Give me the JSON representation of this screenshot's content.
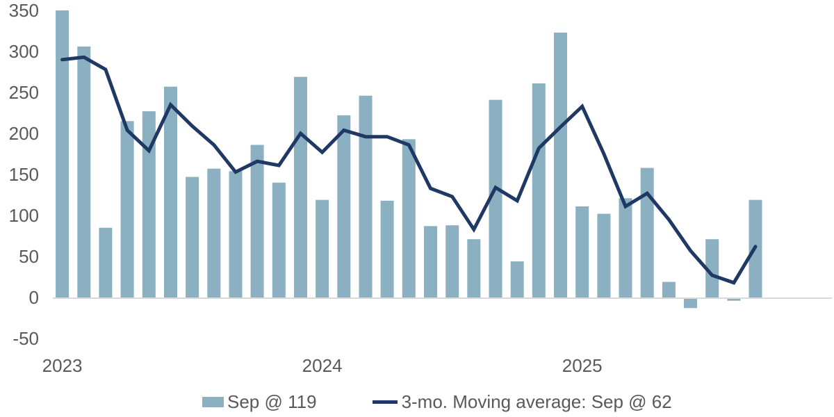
{
  "colors": {
    "bar": "#8AB0C2",
    "line": "#1F3864",
    "axis_line": "#D9D9D9",
    "label_text": "#595959",
    "background": "#FFFFFF"
  },
  "chart_data": {
    "type": "bar",
    "subtype": "bar-with-line-overlay",
    "title": "",
    "xlabel": "",
    "ylabel": "",
    "x": [
      "Jan 2023",
      "Feb 2023",
      "Mar 2023",
      "Apr 2023",
      "May 2023",
      "Jun 2023",
      "Jul 2023",
      "Aug 2023",
      "Sep 2023",
      "Oct 2023",
      "Nov 2023",
      "Dec 2023",
      "Jan 2024",
      "Feb 2024",
      "Mar 2024",
      "Apr 2024",
      "May 2024",
      "Jun 2024",
      "Jul 2024",
      "Aug 2024",
      "Sep 2024",
      "Oct 2024",
      "Nov 2024",
      "Dec 2024",
      "Jan 2025",
      "Feb 2025",
      "Mar 2025",
      "Apr 2025",
      "May 2025",
      "Jun 2025",
      "Jul 2025",
      "Aug 2025",
      "Sep 2025"
    ],
    "series": [
      {
        "name": "Sep @ 119",
        "type": "bar",
        "color": "#8AB0C2",
        "values": [
          350,
          306,
          85,
          215,
          227,
          257,
          147,
          157,
          154,
          186,
          140,
          269,
          119,
          222,
          246,
          118,
          193,
          87,
          88,
          71,
          241,
          44,
          261,
          323,
          111,
          102,
          121,
          158,
          19,
          -13,
          71,
          -4,
          119
        ]
      },
      {
        "name": "3-mo. Moving average: Sep @ 62",
        "type": "line",
        "color": "#1F3864",
        "values": [
          290,
          293,
          278,
          204,
          179,
          235,
          209,
          186,
          153,
          166,
          161,
          200,
          177,
          204,
          196,
          196,
          186,
          133,
          123,
          83,
          134,
          118,
          182,
          208,
          233,
          175,
          111,
          127,
          95,
          57,
          27,
          18,
          62
        ]
      }
    ],
    "ylim": [
      -50,
      350
    ],
    "y_ticks": [
      350,
      300,
      250,
      200,
      150,
      100,
      50,
      0,
      -50
    ],
    "x_tick_labels": [
      {
        "label": "2023",
        "index": 0
      },
      {
        "label": "2024",
        "index": 12
      },
      {
        "label": "2025",
        "index": 24
      }
    ],
    "grid": false,
    "legend_position": "bottom"
  }
}
